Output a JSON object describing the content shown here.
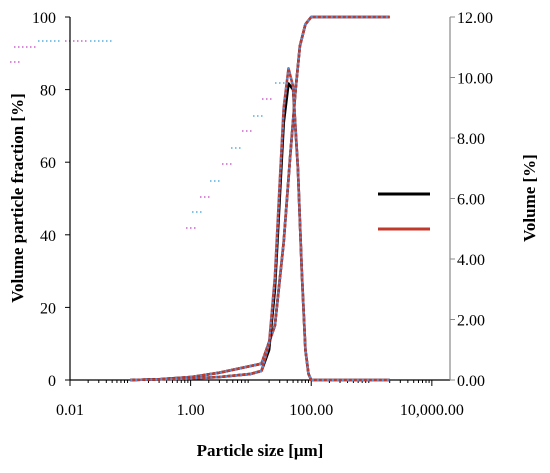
{
  "chart_data": {
    "type": "line",
    "title": "",
    "xlabel": "Particle size [μm]",
    "ylabel_left": "Volume particle fraction [%]",
    "ylabel_right": "Volume [%]",
    "x_scale": "log",
    "xlim": [
      0.01,
      20000
    ],
    "ylim_left": [
      0,
      100
    ],
    "ylim_right": [
      0,
      12
    ],
    "x_ticks": [
      0.01,
      1,
      100,
      10000
    ],
    "x_tick_labels": [
      "0.01",
      "1.00",
      "100.00",
      "10,000.00"
    ],
    "y_left_ticks": [
      0,
      20,
      40,
      60,
      80,
      100
    ],
    "y_left_tick_labels": [
      "0",
      "20",
      "40",
      "60",
      "80",
      "100"
    ],
    "y_right_ticks": [
      0,
      2,
      4,
      6,
      8,
      10,
      12
    ],
    "y_right_tick_labels": [
      "0.00",
      "2.00",
      "4.00",
      "6.00",
      "8.00",
      "10.00",
      "12.00"
    ],
    "grid": false,
    "legend": {
      "placement": "right",
      "entries": [
        {
          "name": "",
          "color": "#000000"
        },
        {
          "name": "",
          "color": "#c0392b"
        }
      ]
    },
    "series": [
      {
        "axis": "left",
        "kind": "cumulative",
        "color": "#000000",
        "x": [
          0.1,
          0.3,
          1,
          3,
          15,
          25,
          35,
          45,
          55,
          65,
          80,
          100,
          2000
        ],
        "y": [
          0,
          0.2,
          0.8,
          2,
          4.5,
          15,
          38,
          62,
          80,
          92,
          98,
          100,
          100
        ]
      },
      {
        "axis": "left",
        "kind": "cumulative",
        "color": "#c0392b",
        "x": [
          0.1,
          0.3,
          1,
          3,
          15,
          25,
          35,
          45,
          55,
          65,
          80,
          100,
          2000
        ],
        "y": [
          0,
          0.2,
          0.8,
          2,
          4.5,
          15,
          38,
          62,
          80,
          92,
          98,
          100,
          100
        ]
      },
      {
        "axis": "left",
        "kind": "cumulative",
        "color": "#5b8fd6",
        "x": [
          0.1,
          0.3,
          1,
          3,
          15,
          25,
          35,
          45,
          55,
          65,
          80,
          100,
          2000
        ],
        "y": [
          0,
          0.2,
          0.8,
          2,
          4.5,
          15,
          38,
          62,
          80,
          92,
          98,
          100,
          100
        ]
      },
      {
        "axis": "right",
        "kind": "distribution",
        "color": "#000000",
        "x": [
          0.1,
          1,
          3,
          10,
          15,
          20,
          25,
          30,
          35,
          42,
          50,
          60,
          70,
          80,
          90,
          100,
          2000
        ],
        "y": [
          0,
          0.05,
          0.1,
          0.2,
          0.3,
          1,
          3,
          6,
          8.5,
          9.8,
          9.6,
          7,
          3.5,
          1,
          0.2,
          0,
          0
        ]
      },
      {
        "axis": "right",
        "kind": "distribution",
        "color": "#c0392b",
        "x": [
          0.1,
          1,
          3,
          10,
          15,
          20,
          25,
          30,
          35,
          42,
          50,
          60,
          70,
          80,
          90,
          100,
          2000
        ],
        "y": [
          0,
          0.05,
          0.1,
          0.2,
          0.3,
          1.2,
          3.4,
          6.5,
          9,
          10.3,
          9.7,
          7,
          3.5,
          1,
          0.2,
          0,
          0
        ]
      },
      {
        "axis": "right",
        "kind": "distribution",
        "color": "#5b8fd6",
        "x": [
          0.1,
          1,
          3,
          10,
          15,
          20,
          25,
          30,
          35,
          42,
          50,
          60,
          70,
          80,
          90,
          100,
          2000
        ],
        "y": [
          0,
          0.05,
          0.1,
          0.2,
          0.3,
          1.2,
          3.4,
          6.5,
          9,
          10.3,
          9.7,
          7,
          3.5,
          1,
          0.2,
          0,
          0
        ]
      }
    ]
  }
}
